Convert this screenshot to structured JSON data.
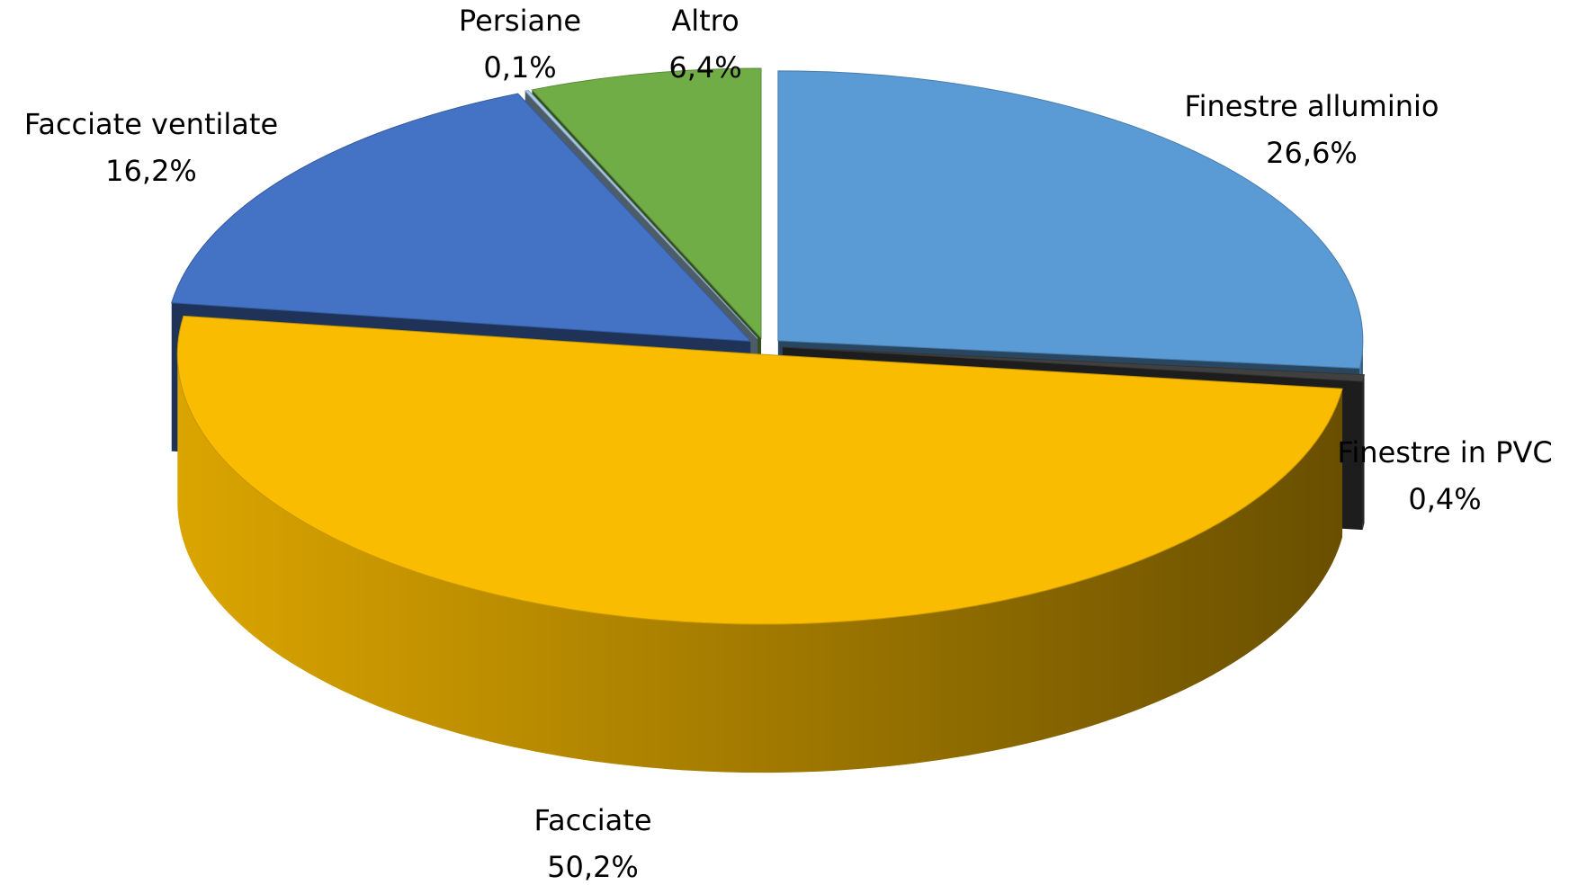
{
  "chart_data": {
    "type": "pie3d",
    "categories": [
      "Finestre alluminio",
      "Finestre in PVC",
      "Facciate",
      "Facciate ventilate",
      "Persiane",
      "Altro"
    ],
    "values": [
      26.6,
      0.4,
      50.2,
      16.2,
      0.1,
      6.4
    ],
    "value_labels": [
      "26,6%",
      "0,4%",
      "50,2%",
      "16,2%",
      "0,1%",
      "6,4%"
    ],
    "colors": [
      "#5b9bd5",
      "#404040",
      "#f9bc00",
      "#4472c4",
      "#a9cdea",
      "#70ad47"
    ]
  }
}
